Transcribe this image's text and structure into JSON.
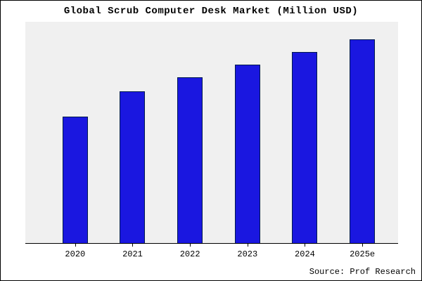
{
  "title": "Global Scrub Computer Desk Market (Million USD)",
  "source": "Source: Prof Research",
  "colors": {
    "bar_fill": "#1a17e0",
    "bar_edge": "#001a4d",
    "plot_bg": "#f0f0f0",
    "axis": "#000000",
    "background": "#ffffff"
  },
  "chart_data": {
    "type": "bar",
    "categories": [
      "2020",
      "2021",
      "2022",
      "2023",
      "2024",
      "2025e"
    ],
    "values": [
      100,
      120,
      131,
      141,
      151,
      161
    ],
    "title": "Global Scrub Computer Desk Market (Million USD)",
    "xlabel": "",
    "ylabel": "",
    "ylim": [
      0,
      175
    ],
    "grid": false,
    "legend": false,
    "annotation": "Source: Prof Research"
  }
}
